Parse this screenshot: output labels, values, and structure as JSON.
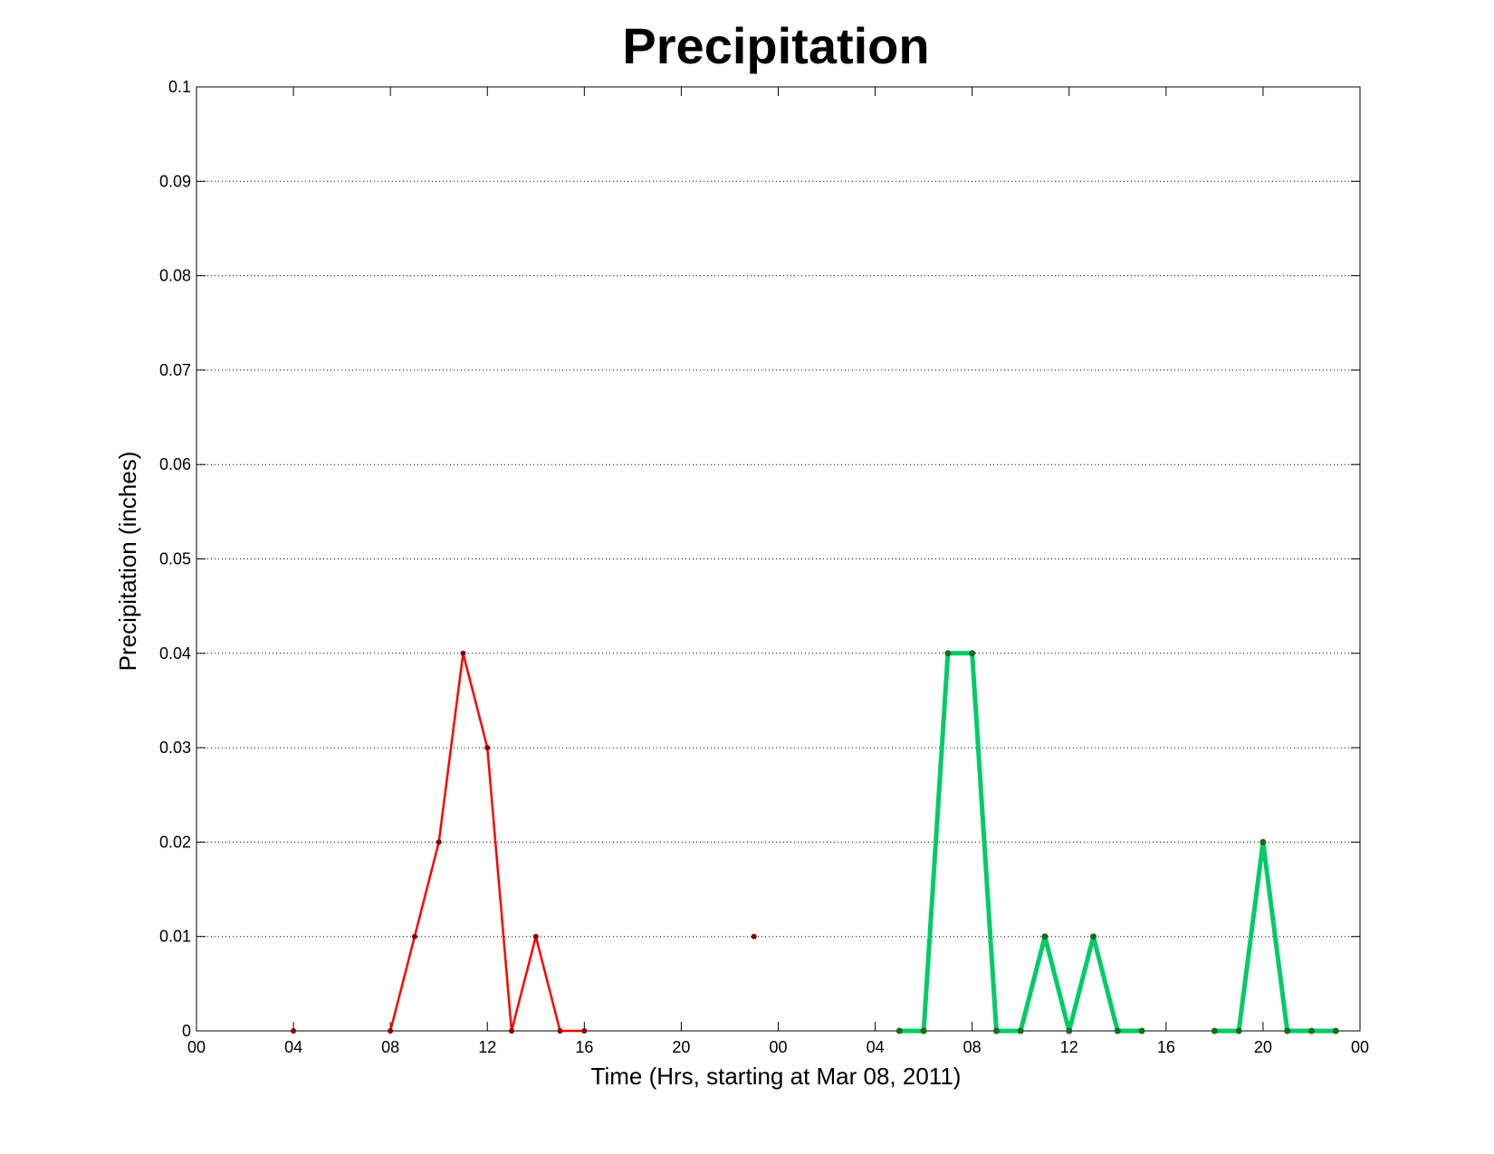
{
  "chart_data": {
    "type": "line",
    "title": "Precipitation",
    "xlabel": "Time (Hrs, starting at Mar 08, 2011)",
    "ylabel": "Precipitation (inches)",
    "xlim": [
      0,
      48
    ],
    "ylim": [
      0,
      0.1
    ],
    "grid": "y-only dotted",
    "x_tick_labels": [
      "00",
      "04",
      "08",
      "12",
      "16",
      "20",
      "00",
      "04",
      "08",
      "12",
      "16",
      "20",
      "00"
    ],
    "x_tick_values": [
      0,
      4,
      8,
      12,
      16,
      20,
      24,
      28,
      32,
      36,
      40,
      44,
      48
    ],
    "y_ticks": [
      0,
      0.01,
      0.02,
      0.03,
      0.04,
      0.05,
      0.06,
      0.07,
      0.08,
      0.09,
      0.1
    ],
    "y_tick_labels": [
      "0",
      "0.01",
      "0.02",
      "0.03",
      "0.04",
      "0.05",
      "0.06",
      "0.07",
      "0.08",
      "0.09",
      "0.1"
    ],
    "series": [
      {
        "color": "#ff0000",
        "marker_color": "#8b0000",
        "line_width": "thin",
        "points": [
          [
            4,
            0
          ],
          [
            8,
            0
          ],
          [
            9,
            0.01
          ],
          [
            10,
            0.02
          ],
          [
            11,
            0.04
          ],
          [
            12,
            0.03
          ],
          [
            13,
            0
          ],
          [
            14,
            0.01
          ],
          [
            15,
            0
          ],
          [
            16,
            0
          ],
          [
            23,
            0.01
          ]
        ],
        "segments": [
          [
            1,
            9
          ]
        ]
      },
      {
        "color": "#00cc66",
        "marker_color": "#1a6b1a",
        "line_width": "thick",
        "points": [
          [
            29,
            0
          ],
          [
            30,
            0
          ],
          [
            31,
            0.04
          ],
          [
            32,
            0.04
          ],
          [
            33,
            0
          ],
          [
            34,
            0
          ],
          [
            35,
            0.01
          ],
          [
            36,
            0
          ],
          [
            37,
            0.01
          ],
          [
            38,
            0
          ],
          [
            39,
            0
          ],
          [
            42,
            0
          ],
          [
            43,
            0
          ],
          [
            44,
            0.02
          ],
          [
            45,
            0
          ],
          [
            46,
            0
          ],
          [
            47,
            0
          ]
        ],
        "segments": [
          [
            0,
            10
          ],
          [
            11,
            16
          ]
        ]
      }
    ]
  }
}
